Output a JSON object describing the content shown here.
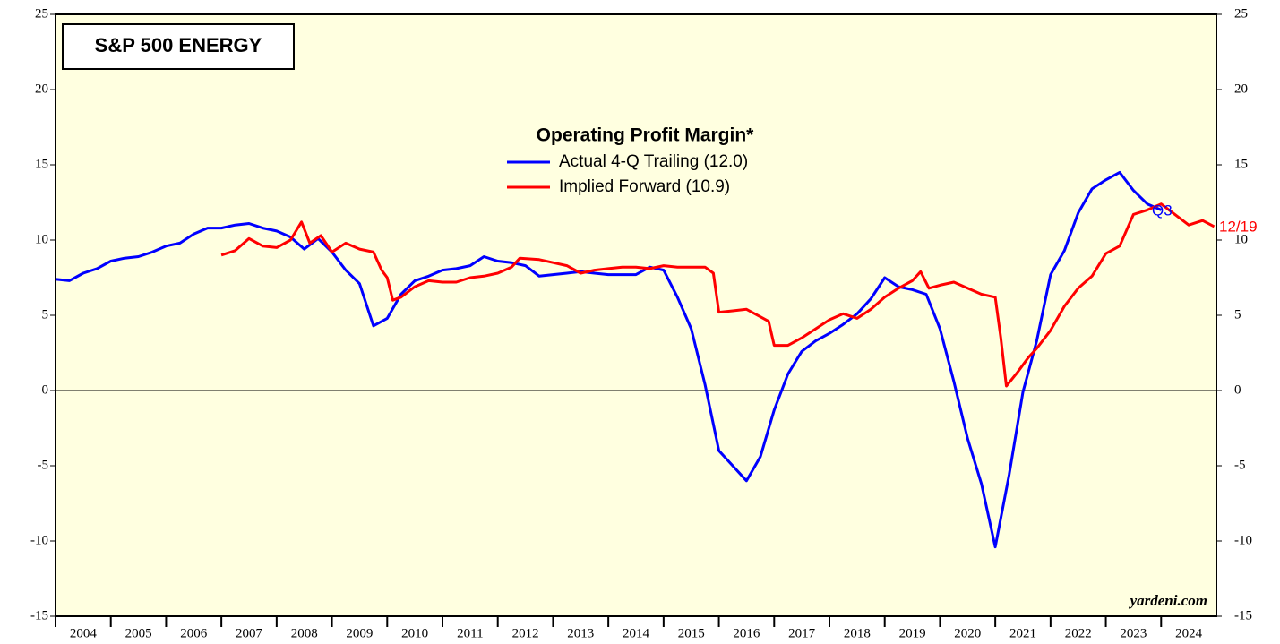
{
  "chart_data": {
    "type": "line",
    "title": "S&P 500 ENERGY",
    "legend_title": "Operating Profit Margin*",
    "annotations": [
      "Q3",
      "12/19",
      "yardeni.com"
    ],
    "xlim": [
      2004,
      2025
    ],
    "ylim": [
      -15,
      25
    ],
    "yticks": [
      -15,
      -10,
      -5,
      0,
      5,
      10,
      15,
      20,
      25
    ],
    "xticks": [
      {
        "value": 2004.5,
        "label": "2004"
      },
      {
        "value": 2005.5,
        "label": "2005"
      },
      {
        "value": 2006.5,
        "label": "2006"
      },
      {
        "value": 2007.5,
        "label": "2007"
      },
      {
        "value": 2008.5,
        "label": "2008"
      },
      {
        "value": 2009.5,
        "label": "2009"
      },
      {
        "value": 2010.5,
        "label": "2010"
      },
      {
        "value": 2011.5,
        "label": "2011"
      },
      {
        "value": 2012.5,
        "label": "2012"
      },
      {
        "value": 2013.5,
        "label": "2013"
      },
      {
        "value": 2014.5,
        "label": "2014"
      },
      {
        "value": 2015.5,
        "label": "2015"
      },
      {
        "value": 2016.5,
        "label": "2016"
      },
      {
        "value": 2017.5,
        "label": "2017"
      },
      {
        "value": 2018.5,
        "label": "2018"
      },
      {
        "value": 2019.5,
        "label": "2019"
      },
      {
        "value": 2020.5,
        "label": "2020"
      },
      {
        "value": 2021.5,
        "label": "2021"
      },
      {
        "value": 2022.5,
        "label": "2022"
      },
      {
        "value": 2023.5,
        "label": "2023"
      },
      {
        "value": 2024.5,
        "label": "2024"
      }
    ],
    "series": [
      {
        "name": "Actual 4-Q Trailing (12.0)",
        "color": "#0000ff",
        "x": [
          2004,
          2004.25,
          2004.5,
          2004.75,
          2005,
          2005.25,
          2005.5,
          2005.75,
          2006,
          2006.25,
          2006.5,
          2006.75,
          2007,
          2007.25,
          2007.5,
          2007.75,
          2008,
          2008.25,
          2008.5,
          2008.75,
          2009,
          2009.25,
          2009.5,
          2009.75,
          2010,
          2010.25,
          2010.5,
          2010.75,
          2011,
          2011.25,
          2011.5,
          2011.75,
          2012,
          2012.25,
          2012.5,
          2012.75,
          2013,
          2013.25,
          2013.5,
          2013.75,
          2014,
          2014.25,
          2014.5,
          2014.75,
          2015,
          2015.25,
          2015.5,
          2015.75,
          2016,
          2016.25,
          2016.5,
          2016.75,
          2017,
          2017.25,
          2017.5,
          2017.75,
          2018,
          2018.25,
          2018.5,
          2018.75,
          2019,
          2019.25,
          2019.5,
          2019.75,
          2020,
          2020.25,
          2020.5,
          2020.75,
          2021,
          2021.25,
          2021.5,
          2021.75,
          2022,
          2022.25,
          2022.5,
          2022.75,
          2023,
          2023.25,
          2023.5,
          2023.75,
          2024
        ],
        "values": [
          7.4,
          7.3,
          7.8,
          8.1,
          8.6,
          8.8,
          8.9,
          9.2,
          9.6,
          9.8,
          10.4,
          10.8,
          10.8,
          11.0,
          11.1,
          10.8,
          10.6,
          10.2,
          9.4,
          10.1,
          9.2,
          8.0,
          7.1,
          4.3,
          4.8,
          6.4,
          7.3,
          7.6,
          8.0,
          8.1,
          8.3,
          8.9,
          8.6,
          8.5,
          8.3,
          7.6,
          7.7,
          7.8,
          7.9,
          7.8,
          7.7,
          7.7,
          7.7,
          8.2,
          8.0,
          6.2,
          4.1,
          0.4,
          -4.0,
          -5.0,
          -6.0,
          -4.4,
          -1.3,
          1.1,
          2.6,
          3.3,
          3.8,
          4.4,
          5.1,
          6.1,
          7.5,
          6.9,
          6.7,
          6.4,
          4.1,
          0.6,
          -3.2,
          -6.2,
          -10.4,
          -5.6,
          -0.1,
          3.3,
          7.7,
          9.3,
          11.8,
          13.4,
          14.0,
          14.5,
          13.3,
          12.4,
          12.0
        ]
      },
      {
        "name": "Implied Forward (10.9)",
        "color": "#ff0000",
        "x": [
          2007,
          2007.25,
          2007.5,
          2007.75,
          2008,
          2008.25,
          2008.45,
          2008.6,
          2008.8,
          2009,
          2009.25,
          2009.5,
          2009.75,
          2009.9,
          2010,
          2010.1,
          2010.25,
          2010.5,
          2010.75,
          2011,
          2011.25,
          2011.5,
          2011.75,
          2012,
          2012.25,
          2012.4,
          2012.75,
          2013,
          2013.25,
          2013.5,
          2013.75,
          2014,
          2014.25,
          2014.5,
          2014.75,
          2015,
          2015.25,
          2015.5,
          2015.75,
          2015.9,
          2016,
          2016.25,
          2016.5,
          2016.75,
          2016.9,
          2017,
          2017.25,
          2017.5,
          2017.75,
          2018,
          2018.25,
          2018.5,
          2018.75,
          2019,
          2019.25,
          2019.5,
          2019.65,
          2019.8,
          2020,
          2020.25,
          2020.5,
          2020.75,
          2021,
          2021.1,
          2021.2,
          2021.4,
          2021.6,
          2021.75,
          2022,
          2022.25,
          2022.5,
          2022.75,
          2023,
          2023.25,
          2023.5,
          2023.75,
          2024,
          2024.25,
          2024.5,
          2024.75,
          2024.96
        ],
        "values": [
          9.0,
          9.3,
          10.1,
          9.6,
          9.5,
          10.0,
          11.2,
          9.8,
          10.3,
          9.2,
          9.8,
          9.4,
          9.2,
          8.0,
          7.5,
          6.0,
          6.2,
          6.9,
          7.3,
          7.2,
          7.2,
          7.5,
          7.6,
          7.8,
          8.2,
          8.8,
          8.7,
          8.5,
          8.3,
          7.8,
          8.0,
          8.1,
          8.2,
          8.2,
          8.1,
          8.3,
          8.2,
          8.2,
          8.2,
          7.8,
          5.2,
          5.3,
          5.4,
          4.9,
          4.6,
          3.0,
          3.0,
          3.5,
          4.1,
          4.7,
          5.1,
          4.8,
          5.4,
          6.2,
          6.8,
          7.3,
          7.9,
          6.8,
          7.0,
          7.2,
          6.8,
          6.4,
          6.2,
          3.5,
          0.3,
          1.2,
          2.2,
          2.8,
          4.0,
          5.6,
          6.8,
          7.6,
          9.1,
          9.6,
          11.7,
          12.0,
          12.4,
          11.7,
          11.0,
          11.3,
          10.9
        ]
      }
    ]
  }
}
